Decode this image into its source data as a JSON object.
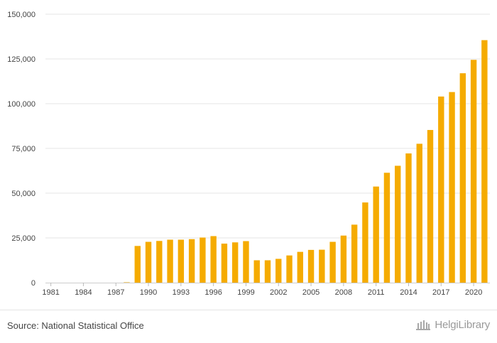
{
  "chart_data": {
    "type": "bar",
    "categories": [
      "1981",
      "1982",
      "1983",
      "1984",
      "1985",
      "1986",
      "1987",
      "1988",
      "1989",
      "1990",
      "1991",
      "1992",
      "1993",
      "1994",
      "1995",
      "1996",
      "1997",
      "1998",
      "1999",
      "2000",
      "2001",
      "2002",
      "2003",
      "2004",
      "2005",
      "2006",
      "2007",
      "2008",
      "2009",
      "2010",
      "2011",
      "2012",
      "2013",
      "2014",
      "2015",
      "2016",
      "2017",
      "2018",
      "2019",
      "2020",
      "2021"
    ],
    "x_tick_labels": [
      "1981",
      "1984",
      "1987",
      "1990",
      "1993",
      "1996",
      "1999",
      "2002",
      "2005",
      "2008",
      "2011",
      "2014",
      "2017",
      "2020"
    ],
    "values": [
      0,
      0,
      0,
      0,
      0,
      0,
      0,
      200,
      20500,
      22800,
      23300,
      24000,
      24000,
      24300,
      25200,
      26000,
      21800,
      22500,
      23200,
      12500,
      12500,
      13300,
      15200,
      17200,
      18300,
      18400,
      22800,
      26300,
      32400,
      44800,
      53700,
      61400,
      65300,
      72200,
      77600,
      85300,
      104000,
      106500,
      117000,
      124500,
      135500
    ],
    "ylim": [
      0,
      150000
    ],
    "y_ticks": [
      "0",
      "25,000",
      "50,000",
      "75,000",
      "100,000",
      "125,000",
      "150,000"
    ],
    "grid": true,
    "bar_color": "#f5ab00",
    "title": "",
    "xlabel": "",
    "ylabel": ""
  },
  "footer": {
    "source": "Source: National Statistical Office",
    "brand": "HelgiLibrary"
  }
}
